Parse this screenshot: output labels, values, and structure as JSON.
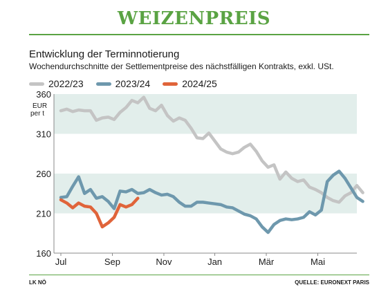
{
  "header": {
    "title": "WEIZENPREIS"
  },
  "colors": {
    "accent": "#5aa343",
    "band": "#e2eeeb",
    "s1": "#c4c4c4",
    "s2": "#6e98ad",
    "s3": "#e0643a"
  },
  "chart_data": {
    "type": "line",
    "title": "Entwicklung der Terminnotierung",
    "subtitle": "Wochendurchschnitte der Settlementpreise des nächstfälligen Kontrakts, exkl. USt.",
    "ylabel": "EUR per t",
    "ylim": [
      160,
      360
    ],
    "yticks": [
      360,
      310,
      260,
      210,
      160
    ],
    "xlim": [
      0,
      50
    ],
    "xticks": [
      {
        "label": "Jul",
        "x": 0
      },
      {
        "label": "Sep",
        "x": 8.7
      },
      {
        "label": "Nov",
        "x": 17.4
      },
      {
        "label": "Jan",
        "x": 26
      },
      {
        "label": "Mär",
        "x": 34.7
      },
      {
        "label": "Mai",
        "x": 43.4
      }
    ],
    "bands": [
      [
        260,
        210
      ],
      [
        360,
        310
      ]
    ],
    "series": [
      {
        "name": "2022/23",
        "color": "#c4c4c4",
        "values": [
          339,
          341,
          338,
          340,
          339,
          339,
          327,
          330,
          331,
          328,
          337,
          343,
          352,
          349,
          356,
          342,
          339,
          346,
          333,
          326,
          330,
          327,
          317,
          305,
          304,
          311,
          301,
          291,
          287,
          285,
          287,
          293,
          297,
          288,
          276,
          268,
          271,
          253,
          262,
          254,
          250,
          252,
          243,
          240,
          236,
          230,
          226,
          224,
          232,
          236,
          245,
          236
        ]
      },
      {
        "name": "2023/24",
        "color": "#6e98ad",
        "values": [
          230,
          231,
          244,
          256,
          235,
          240,
          229,
          231,
          225,
          216,
          238,
          237,
          240,
          235,
          236,
          240,
          236,
          233,
          234,
          231,
          224,
          219,
          219,
          224,
          224,
          223,
          222,
          221,
          218,
          217,
          213,
          209,
          207,
          203,
          193,
          186,
          196,
          201,
          203,
          202,
          203,
          205,
          212,
          208,
          214,
          250,
          258,
          263,
          254,
          242,
          230,
          225
        ]
      },
      {
        "name": "2024/25",
        "color": "#e0643a",
        "values": [
          227,
          223,
          217,
          223,
          219,
          218,
          210,
          193,
          198,
          205,
          221,
          218,
          221,
          229
        ]
      }
    ]
  },
  "footer": {
    "left": "LK NÖ",
    "right": "QUELLE: EURONEXT PARIS"
  }
}
